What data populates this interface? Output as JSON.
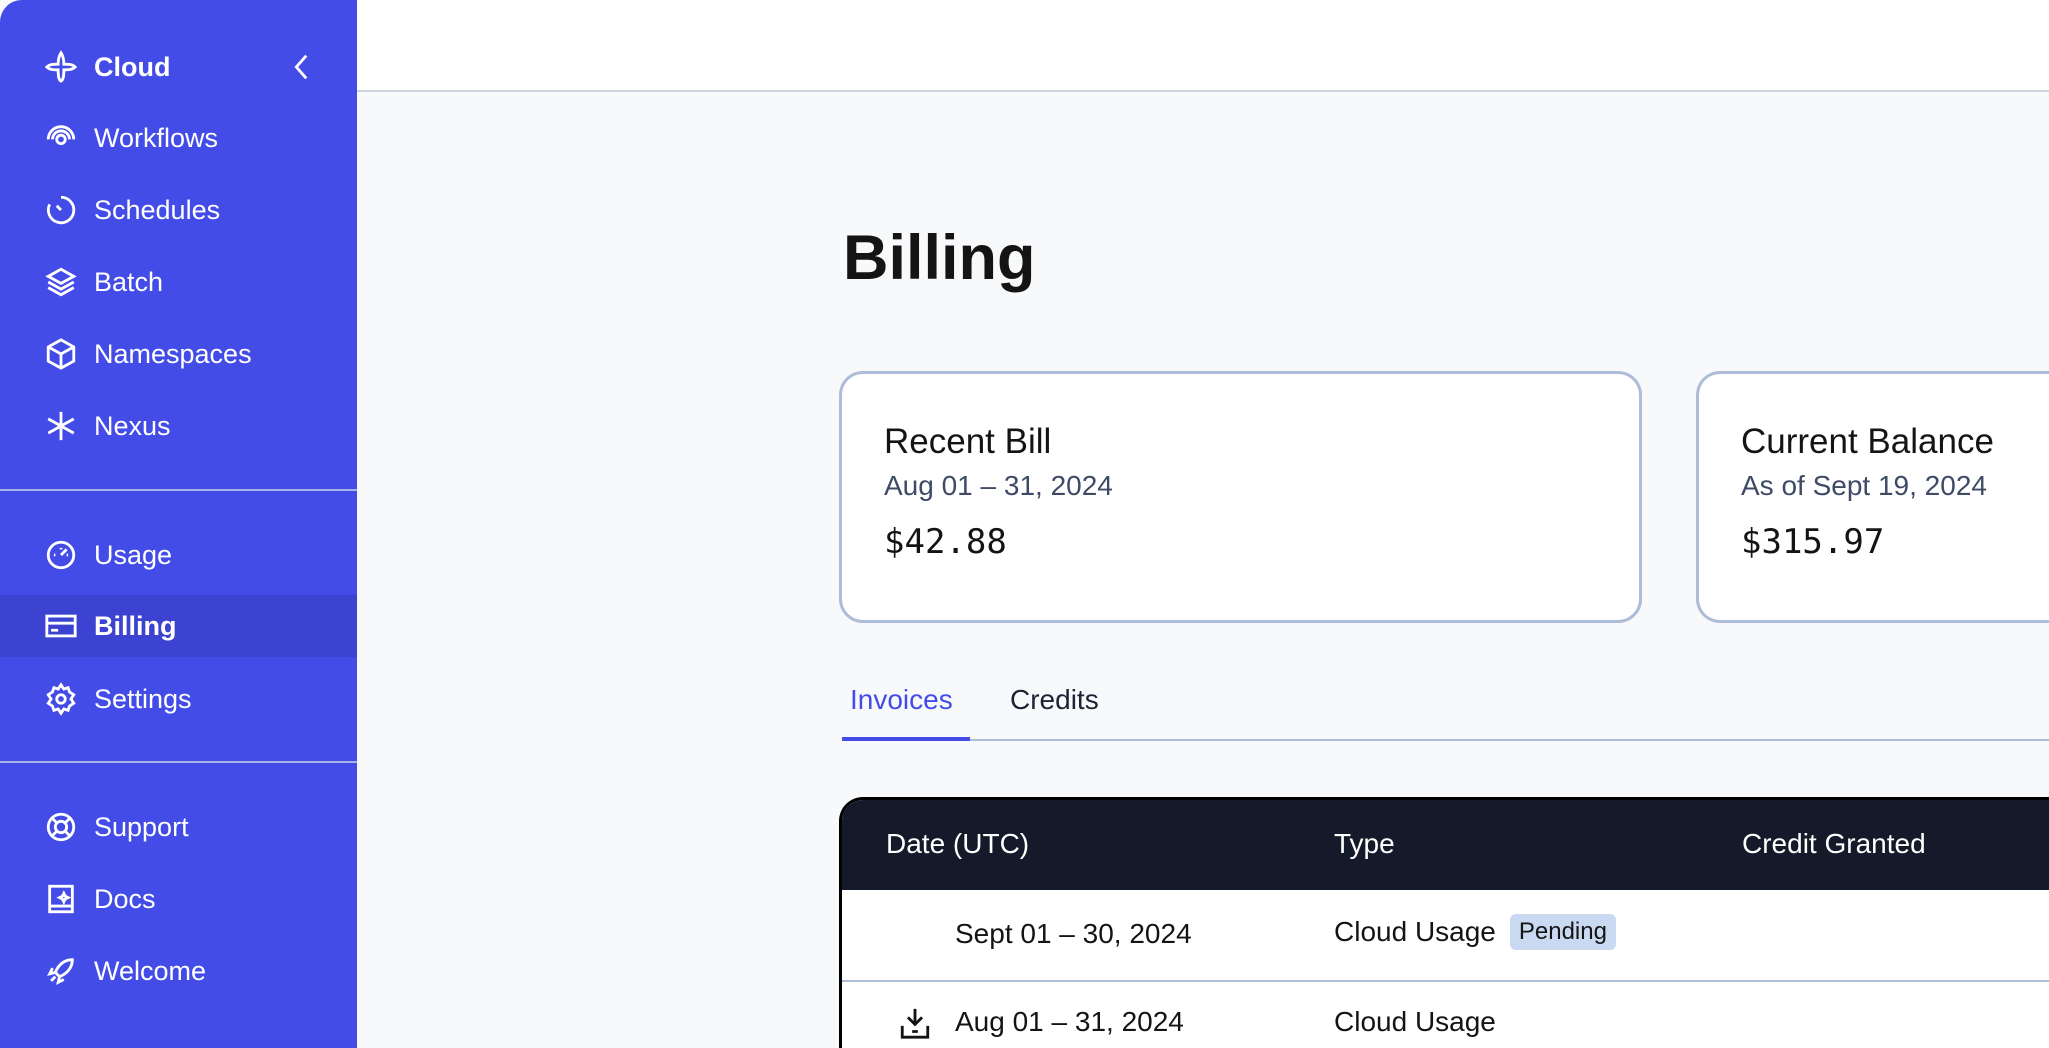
{
  "sidebar": {
    "brand": "Cloud",
    "items": [
      {
        "label": "Workflows",
        "icon": "workflows-icon"
      },
      {
        "label": "Schedules",
        "icon": "schedules-icon"
      },
      {
        "label": "Batch",
        "icon": "batch-icon"
      },
      {
        "label": "Namespaces",
        "icon": "namespaces-icon"
      },
      {
        "label": "Nexus",
        "icon": "nexus-icon"
      },
      {
        "label": "Usage",
        "icon": "usage-icon"
      },
      {
        "label": "Billing",
        "icon": "billing-icon",
        "active": true
      },
      {
        "label": "Settings",
        "icon": "settings-icon"
      },
      {
        "label": "Support",
        "icon": "support-icon"
      },
      {
        "label": "Docs",
        "icon": "docs-icon"
      },
      {
        "label": "Welcome",
        "icon": "welcome-icon"
      }
    ]
  },
  "page": {
    "title": "Billing"
  },
  "cards": [
    {
      "title": "Recent Bill",
      "subtitle": "Aug 01 – 31, 2024",
      "amount": "$42.88"
    },
    {
      "title": "Current Balance",
      "subtitle": "As of Sept 19, 2024",
      "amount": "$315.97"
    }
  ],
  "tabs": [
    {
      "label": "Invoices",
      "active": true
    },
    {
      "label": "Credits"
    }
  ],
  "table": {
    "headers": [
      "Date (UTC)",
      "Type",
      "Credit Granted"
    ],
    "rows": [
      {
        "date": "Sept 01 – 30, 2024",
        "type": "Cloud Usage",
        "badge": "Pending"
      },
      {
        "date": "Aug 01 – 31, 2024",
        "type": "Cloud Usage",
        "download": true
      }
    ]
  },
  "colors": {
    "accent": "#444ce7",
    "sidebar_active": "#3b43d0",
    "table_header": "#141a2a",
    "badge": "#c8d9f1"
  }
}
